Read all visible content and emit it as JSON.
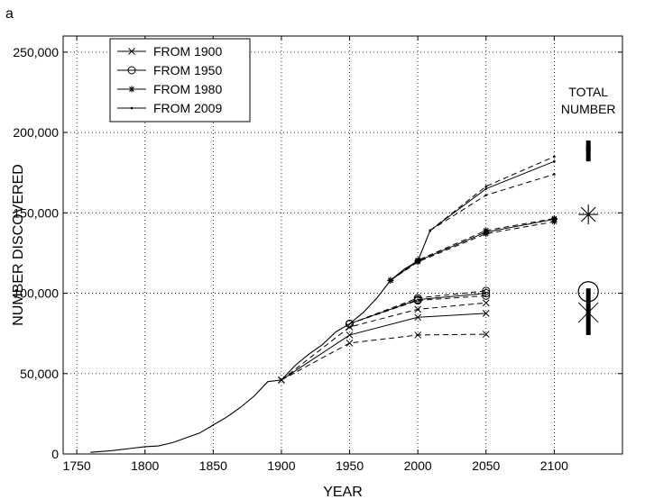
{
  "chart_data": {
    "type": "line",
    "panel_label": "a",
    "xlabel": "YEAR",
    "ylabel": "NUMBER DISCOVERED",
    "xlim": [
      1740,
      2150
    ],
    "ylim": [
      0,
      260000
    ],
    "xticks": [
      1750,
      1800,
      1850,
      1900,
      1950,
      2000,
      2050,
      2100
    ],
    "yticks": [
      0,
      50000,
      100000,
      150000,
      200000,
      250000
    ],
    "ytick_labels": [
      "0",
      "50,000",
      "100,000",
      "150,000",
      "200,000",
      "250,000"
    ],
    "grid": true,
    "legend_position": "top-left",
    "legend": [
      {
        "label": "FROM 1900",
        "marker": "x"
      },
      {
        "label": "FROM 1950",
        "marker": "o"
      },
      {
        "label": "FROM 1980",
        "marker": "*"
      },
      {
        "label": "FROM 2009",
        "marker": "."
      }
    ],
    "historical": {
      "x": [
        1760,
        1775,
        1790,
        1800,
        1810,
        1820,
        1830,
        1840,
        1850,
        1860,
        1870,
        1880,
        1890,
        1900,
        1910,
        1920,
        1930,
        1940,
        1950,
        1960,
        1970,
        1980,
        1990,
        2000,
        2009
      ],
      "y": [
        1000,
        2000,
        3500,
        4500,
        5000,
        7000,
        10000,
        13000,
        18000,
        23000,
        29000,
        36000,
        45000,
        46000,
        55000,
        62000,
        68000,
        76000,
        81000,
        88000,
        97000,
        108000,
        115000,
        120000,
        139000
      ]
    },
    "series": [
      {
        "name": "FROM 1900",
        "marker": "x",
        "style": "solid",
        "x": [
          1900,
          1950,
          2000,
          2050
        ],
        "y": [
          46000,
          74000,
          85000,
          87500
        ]
      },
      {
        "name": "FROM 1900",
        "marker": "x",
        "style": "dashed",
        "x": [
          1900,
          1950,
          2000,
          2050
        ],
        "y": [
          46000,
          69000,
          74000,
          74500
        ]
      },
      {
        "name": "FROM 1900",
        "marker": "x",
        "style": "dashed",
        "x": [
          1900,
          1950,
          2000,
          2050
        ],
        "y": [
          46000,
          79000,
          90000,
          94000
        ]
      },
      {
        "name": "FROM 1950",
        "marker": "o",
        "style": "solid",
        "x": [
          1950,
          2000,
          2050
        ],
        "y": [
          81000,
          96000,
          100000
        ]
      },
      {
        "name": "FROM 1950",
        "marker": "o",
        "style": "dashed",
        "x": [
          1950,
          2000,
          2050
        ],
        "y": [
          81000,
          95500,
          98500
        ]
      },
      {
        "name": "FROM 1950",
        "marker": "o",
        "style": "dashed",
        "x": [
          1950,
          2000,
          2050
        ],
        "y": [
          81000,
          97000,
          101500
        ]
      },
      {
        "name": "FROM 1980",
        "marker": "*",
        "style": "solid",
        "x": [
          1980,
          2000,
          2050,
          2100
        ],
        "y": [
          108000,
          120000,
          138000,
          146000
        ]
      },
      {
        "name": "FROM 1980",
        "marker": "*",
        "style": "dashed",
        "x": [
          1980,
          2000,
          2050,
          2100
        ],
        "y": [
          108000,
          119500,
          137000,
          144500
        ]
      },
      {
        "name": "FROM 1980",
        "marker": "*",
        "style": "dashed",
        "x": [
          1980,
          2000,
          2050,
          2100
        ],
        "y": [
          108000,
          120500,
          139000,
          146500
        ]
      },
      {
        "name": "FROM 2009",
        "marker": ".",
        "style": "solid",
        "x": [
          2009,
          2050,
          2100
        ],
        "y": [
          139000,
          165000,
          182000
        ]
      },
      {
        "name": "FROM 2009",
        "marker": ".",
        "style": "dashed",
        "x": [
          2009,
          2050,
          2100
        ],
        "y": [
          139000,
          161000,
          174000
        ]
      },
      {
        "name": "FROM 2009",
        "marker": ".",
        "style": "dashed",
        "x": [
          2009,
          2050,
          2100
        ],
        "y": [
          139000,
          166500,
          185000
        ]
      }
    ],
    "total_number": {
      "label_line1": "TOTAL",
      "label_line2": "NUMBER",
      "x": 2125,
      "bars": [
        {
          "series": "FROM 2009",
          "marker": ".",
          "center": 190000,
          "low": 182000,
          "high": 195000
        },
        {
          "series": "FROM 1980",
          "marker": "*",
          "center": 149000,
          "low": 149000,
          "high": 149000
        },
        {
          "series": "FROM 1950",
          "marker": "o",
          "center": 101000,
          "low": 94000,
          "high": 103000
        },
        {
          "series": "FROM 1900",
          "marker": "x",
          "center": 88000,
          "low": 74000,
          "high": 94000
        }
      ]
    }
  }
}
